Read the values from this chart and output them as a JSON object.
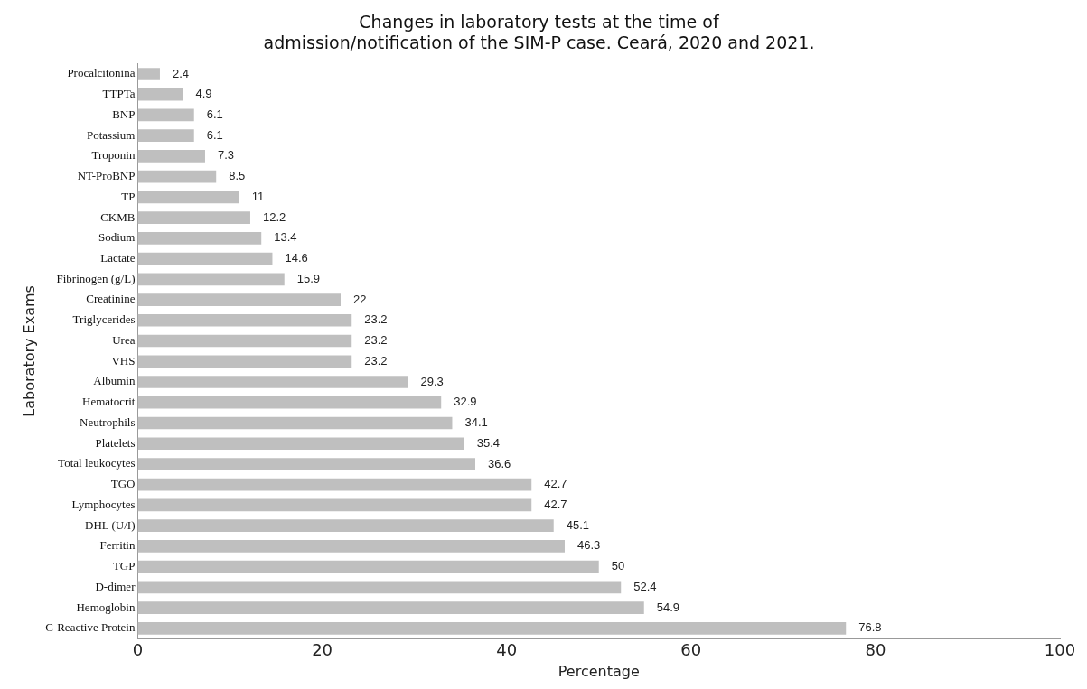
{
  "chart_data": {
    "type": "bar",
    "orientation": "horizontal",
    "title": "Changes in laboratory tests at the time of admission/notification of the SIM-P case. Ceará, 2020 and 2021.",
    "xlabel": "Percentage",
    "ylabel": "Laboratory Exams",
    "categories": [
      "Procalcitonina",
      "TTPTa",
      "BNP",
      "Potassium",
      "Troponin",
      "NT-ProBNP",
      "TP",
      "CKMB",
      "Sodium",
      "Lactate",
      "Fibrinogen (g/L)",
      "Creatinine",
      "Triglycerides",
      "Urea",
      "VHS",
      "Albumin",
      "Hematocrit",
      "Neutrophils",
      "Platelets",
      "Total leukocytes",
      "TGO",
      "Lymphocytes",
      "DHL (U/I)",
      "Ferritin",
      "TGP",
      "D-dimer",
      "Hemoglobin",
      "C-Reactive Protein"
    ],
    "values": [
      2.4,
      4.9,
      6.1,
      6.1,
      7.3,
      8.5,
      11,
      12.2,
      13.4,
      14.6,
      15.9,
      22,
      23.2,
      23.2,
      23.2,
      29.3,
      32.9,
      34.1,
      35.4,
      36.6,
      42.7,
      42.7,
      45.1,
      46.3,
      50,
      52.4,
      54.9,
      76.8
    ],
    "color": "#bfbfbf",
    "xlim": [
      0,
      100
    ],
    "xticks": [
      0,
      20,
      40,
      60,
      80,
      100
    ],
    "grid": false,
    "legend": false,
    "data_labels": true
  }
}
